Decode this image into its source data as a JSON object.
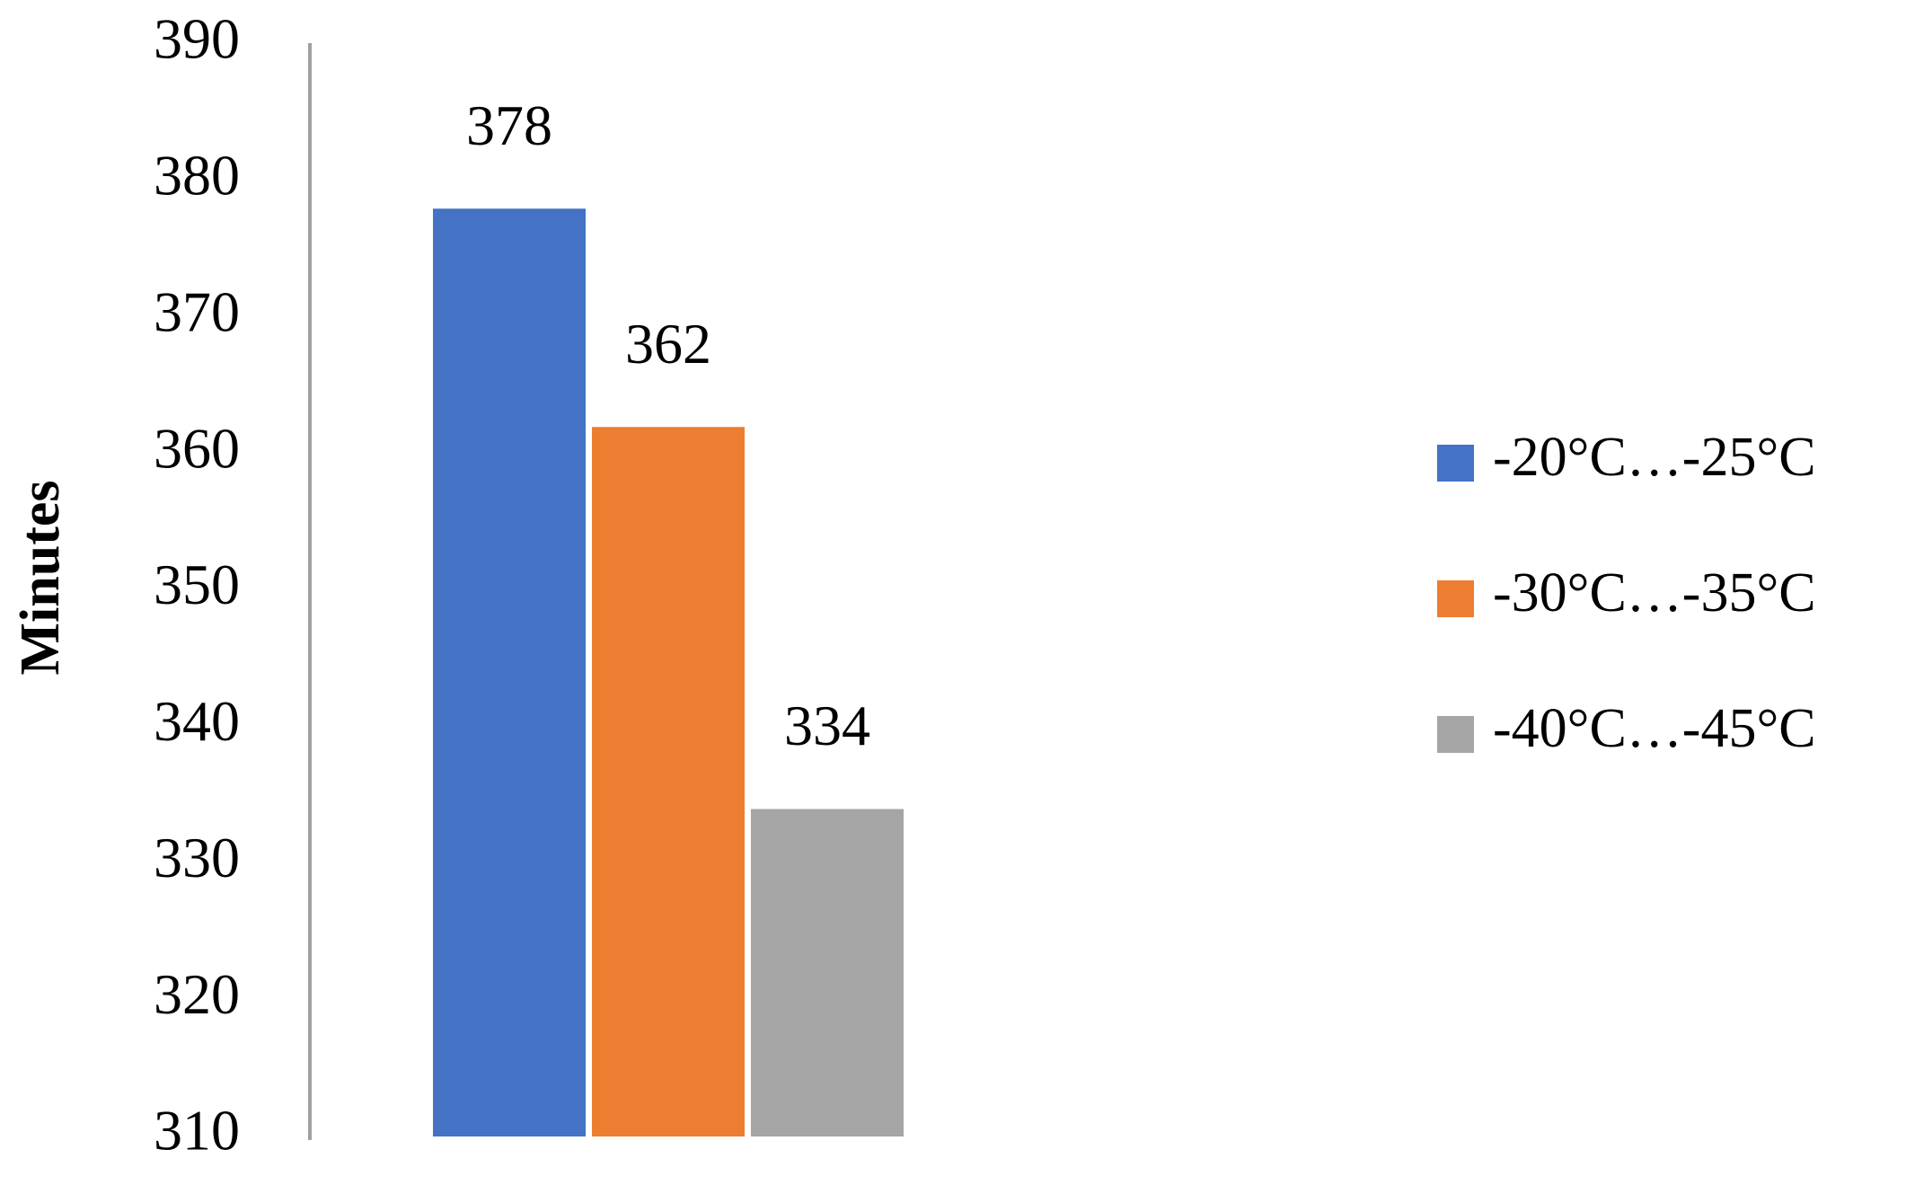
{
  "chart_data": {
    "type": "bar",
    "y_label": "Minutes",
    "categories": [
      null
    ],
    "series": [
      {
        "name": "-20°C…-25°C",
        "color": "#4472c4",
        "values": [
          378
        ]
      },
      {
        "name": "-30°C…-35°C",
        "color": "#ed7d31",
        "values": [
          362
        ]
      },
      {
        "name": "-40°C…-45°C",
        "color": "#a5a5a5",
        "values": [
          334
        ]
      }
    ],
    "ylim": [
      310,
      390
    ],
    "yticks": [
      310,
      320,
      330,
      340,
      350,
      360,
      370,
      380,
      390
    ],
    "grid": false,
    "legend": "right"
  }
}
